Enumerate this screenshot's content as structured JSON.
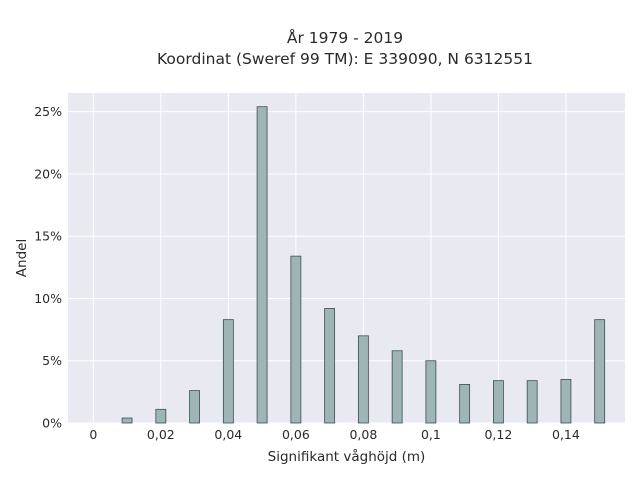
{
  "chart_data": {
    "type": "bar",
    "title": "År 1979 - 2019",
    "subtitle": "Koordinat (Sweref 99 TM): E 339090, N 6312551",
    "xlabel": "Signifikant våghöjd (m)",
    "ylabel": "Andel",
    "xlim": [
      -0.0075,
      0.1575
    ],
    "ylim": [
      0,
      0.265
    ],
    "x_ticks": [
      {
        "value": 0,
        "label": "0"
      },
      {
        "value": 0.02,
        "label": "0,02"
      },
      {
        "value": 0.04,
        "label": "0,04"
      },
      {
        "value": 0.06,
        "label": "0,06"
      },
      {
        "value": 0.08,
        "label": "0,08"
      },
      {
        "value": 0.1,
        "label": "0,1"
      },
      {
        "value": 0.12,
        "label": "0,12"
      },
      {
        "value": 0.14,
        "label": "0,14"
      }
    ],
    "y_ticks": [
      {
        "value": 0,
        "label": "0%"
      },
      {
        "value": 0.05,
        "label": "5%"
      },
      {
        "value": 0.1,
        "label": "10%"
      },
      {
        "value": 0.15,
        "label": "15%"
      },
      {
        "value": 0.2,
        "label": "20%"
      },
      {
        "value": 0.25,
        "label": "25%"
      }
    ],
    "x": [
      0.01,
      0.02,
      0.03,
      0.04,
      0.05,
      0.06,
      0.07,
      0.08,
      0.09,
      0.1,
      0.11,
      0.12,
      0.13,
      0.14,
      0.15
    ],
    "values": [
      0.004,
      0.011,
      0.026,
      0.083,
      0.254,
      0.134,
      0.092,
      0.07,
      0.058,
      0.05,
      0.031,
      0.034,
      0.034,
      0.035,
      0.083
    ],
    "bar_color": "#9db5b5",
    "bar_edge_color": "#3d4f4f",
    "plot_background": "#e9e9f2",
    "grid": true,
    "grid_color": "#ffffff",
    "legend": false
  }
}
